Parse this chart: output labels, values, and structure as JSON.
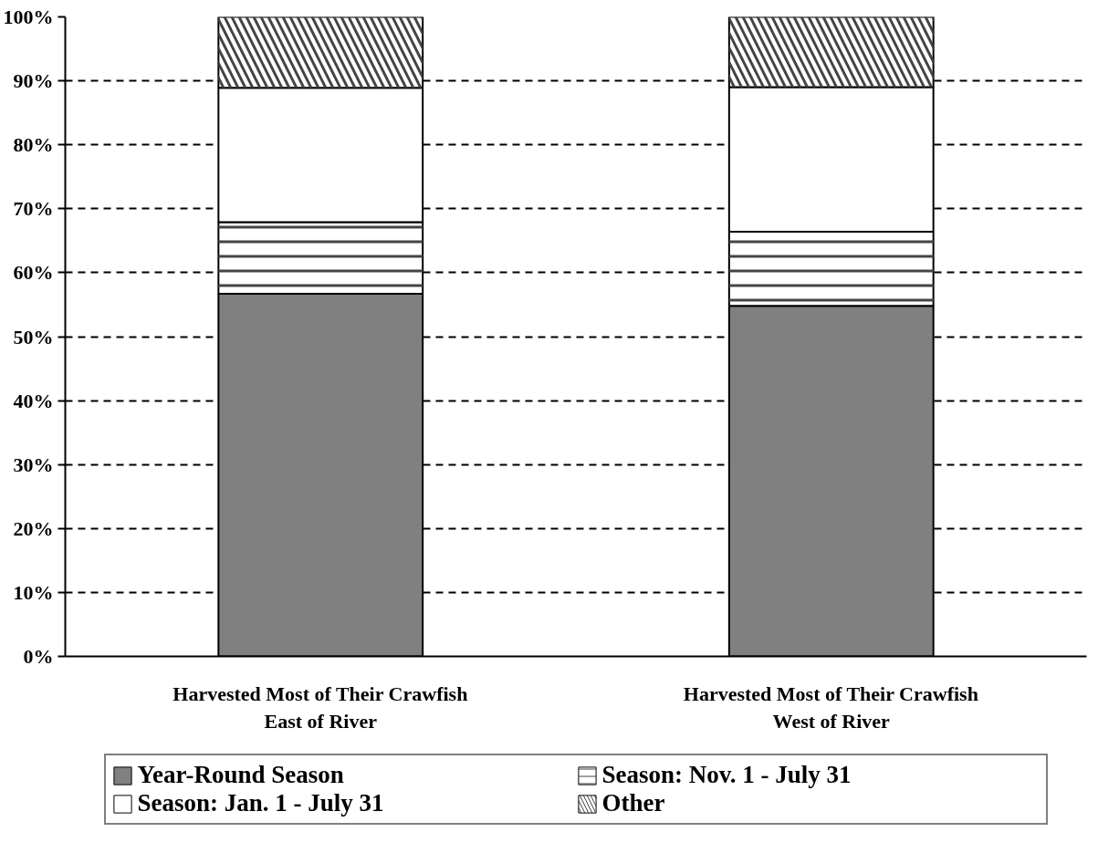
{
  "chart_data": {
    "type": "bar",
    "stacked": true,
    "categories": [
      "Harvested Most of Their Crawfish\nEast of River",
      "Harvested Most of Their Crawfish\nWest of River"
    ],
    "series": [
      {
        "name": "Year-Round Season",
        "color": "#808080",
        "values": [
          56.7,
          54.8
        ]
      },
      {
        "name": "Season: Nov. 1 - July 31",
        "color": "#ffffff",
        "values": [
          11.2,
          11.6
        ]
      },
      {
        "name": "Season: Jan. 1 - July 31",
        "color": "#ffffff",
        "values": [
          21.0,
          22.6
        ]
      },
      {
        "name": "Other",
        "color": "#ffffff",
        "values": [
          11.1,
          11.0
        ]
      }
    ],
    "ylim": [
      0,
      100
    ],
    "yticks": [
      {
        "value": 0,
        "label": "0%"
      },
      {
        "value": 10,
        "label": "10%"
      },
      {
        "value": 20,
        "label": "20%"
      },
      {
        "value": 30,
        "label": "30%"
      },
      {
        "value": 40,
        "label": "40%"
      },
      {
        "value": 50,
        "label": "50%"
      },
      {
        "value": 60,
        "label": "60%"
      },
      {
        "value": 70,
        "label": "70%"
      },
      {
        "value": 80,
        "label": "80%"
      },
      {
        "value": 90,
        "label": "90%"
      },
      {
        "value": 100,
        "label": "100%"
      }
    ],
    "grid": "y",
    "legend": "bottom"
  }
}
